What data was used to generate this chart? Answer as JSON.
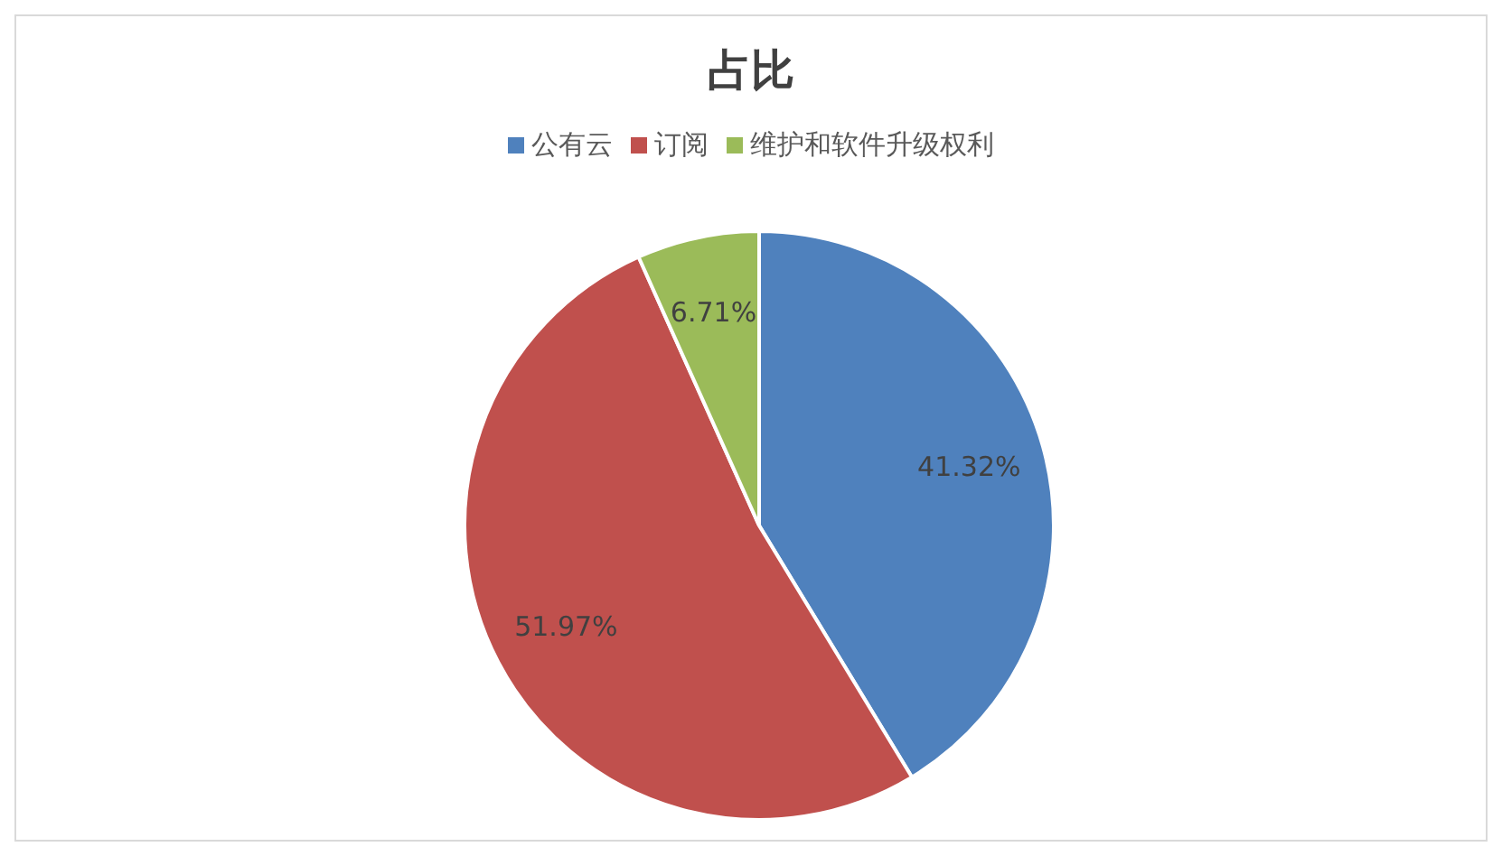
{
  "chart_data": {
    "type": "pie",
    "title": "占比",
    "categories": [
      "公有云",
      "订阅",
      "维护和软件升级权利"
    ],
    "values": [
      41.32,
      51.97,
      6.71
    ],
    "colors": [
      "#4f81bd",
      "#c0504d",
      "#9bbb59"
    ],
    "legend": "top",
    "value_labels": [
      "41.32%",
      "51.97%",
      "6.71%"
    ]
  }
}
